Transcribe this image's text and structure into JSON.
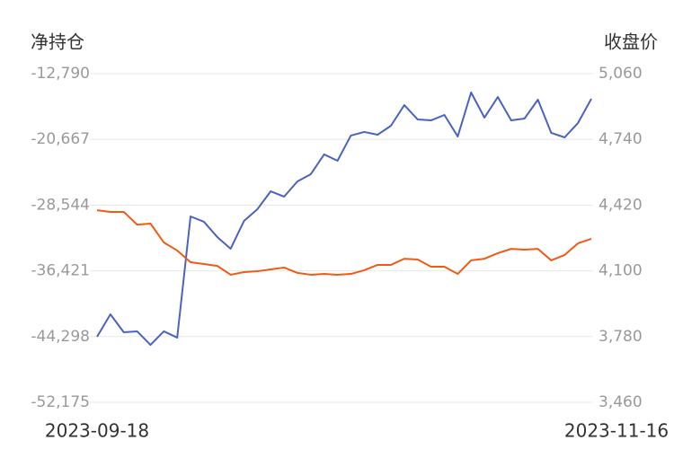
{
  "chart_data": {
    "type": "line",
    "categories": [
      "2023-09-18",
      null,
      null,
      null,
      null,
      null,
      null,
      null,
      null,
      null,
      null,
      null,
      null,
      null,
      null,
      null,
      null,
      null,
      null,
      null,
      null,
      null,
      null,
      null,
      null,
      null,
      null,
      null,
      null,
      null,
      null,
      null,
      null,
      null,
      null,
      null,
      null,
      "2023-11-16"
    ],
    "series": [
      {
        "name": "净持仓",
        "color": "#4a63c2",
        "axis": "y",
        "values": [
          -44317,
          -41630,
          -43780,
          -43670,
          -45290,
          -43670,
          -44420,
          -29900,
          -30540,
          -32370,
          -33770,
          -30440,
          -29040,
          -26890,
          -27530,
          -25700,
          -24840,
          -22470,
          -23230,
          -20210,
          -19780,
          -20110,
          -19030,
          -16560,
          -18280,
          -18390,
          -17740,
          -20320,
          -15050,
          -18060,
          -15590,
          -18390,
          -18170,
          -15910,
          -19890,
          -20430,
          -18710,
          -15800
        ]
      },
      {
        "name": "收盘价",
        "color": "#f25a14",
        "axis": "y2",
        "values": [
          4395,
          4387,
          4387,
          4325,
          4330,
          4238,
          4199,
          4142,
          4133,
          4124,
          4081,
          4094,
          4098,
          4107,
          4116,
          4090,
          4081,
          4085,
          4081,
          4085,
          4103,
          4129,
          4129,
          4159,
          4155,
          4120,
          4120,
          4085,
          4151,
          4159,
          4186,
          4207,
          4203,
          4207,
          4151,
          4177,
          4234,
          4256
        ]
      }
    ],
    "ylim": [
      -52175,
      -12790
    ],
    "yticks": [
      {
        "value": -52175,
        "label": "-52,175"
      },
      {
        "value": -44298,
        "label": "-44,298"
      },
      {
        "value": -36421,
        "label": "-36,421"
      },
      {
        "value": -28544,
        "label": "-28,544"
      },
      {
        "value": -20667,
        "label": "-20,667"
      },
      {
        "value": -12790,
        "label": "-12,790"
      }
    ],
    "y2lim": [
      3460,
      5060
    ],
    "y2ticks": [
      {
        "value": 3460,
        "label": "3,460"
      },
      {
        "value": 3780,
        "label": "3,780"
      },
      {
        "value": 4100,
        "label": "4,100"
      },
      {
        "value": 4420,
        "label": "4,420"
      },
      {
        "value": 4740,
        "label": "4,740"
      },
      {
        "value": 5060,
        "label": "5,060"
      }
    ],
    "grid": true
  }
}
